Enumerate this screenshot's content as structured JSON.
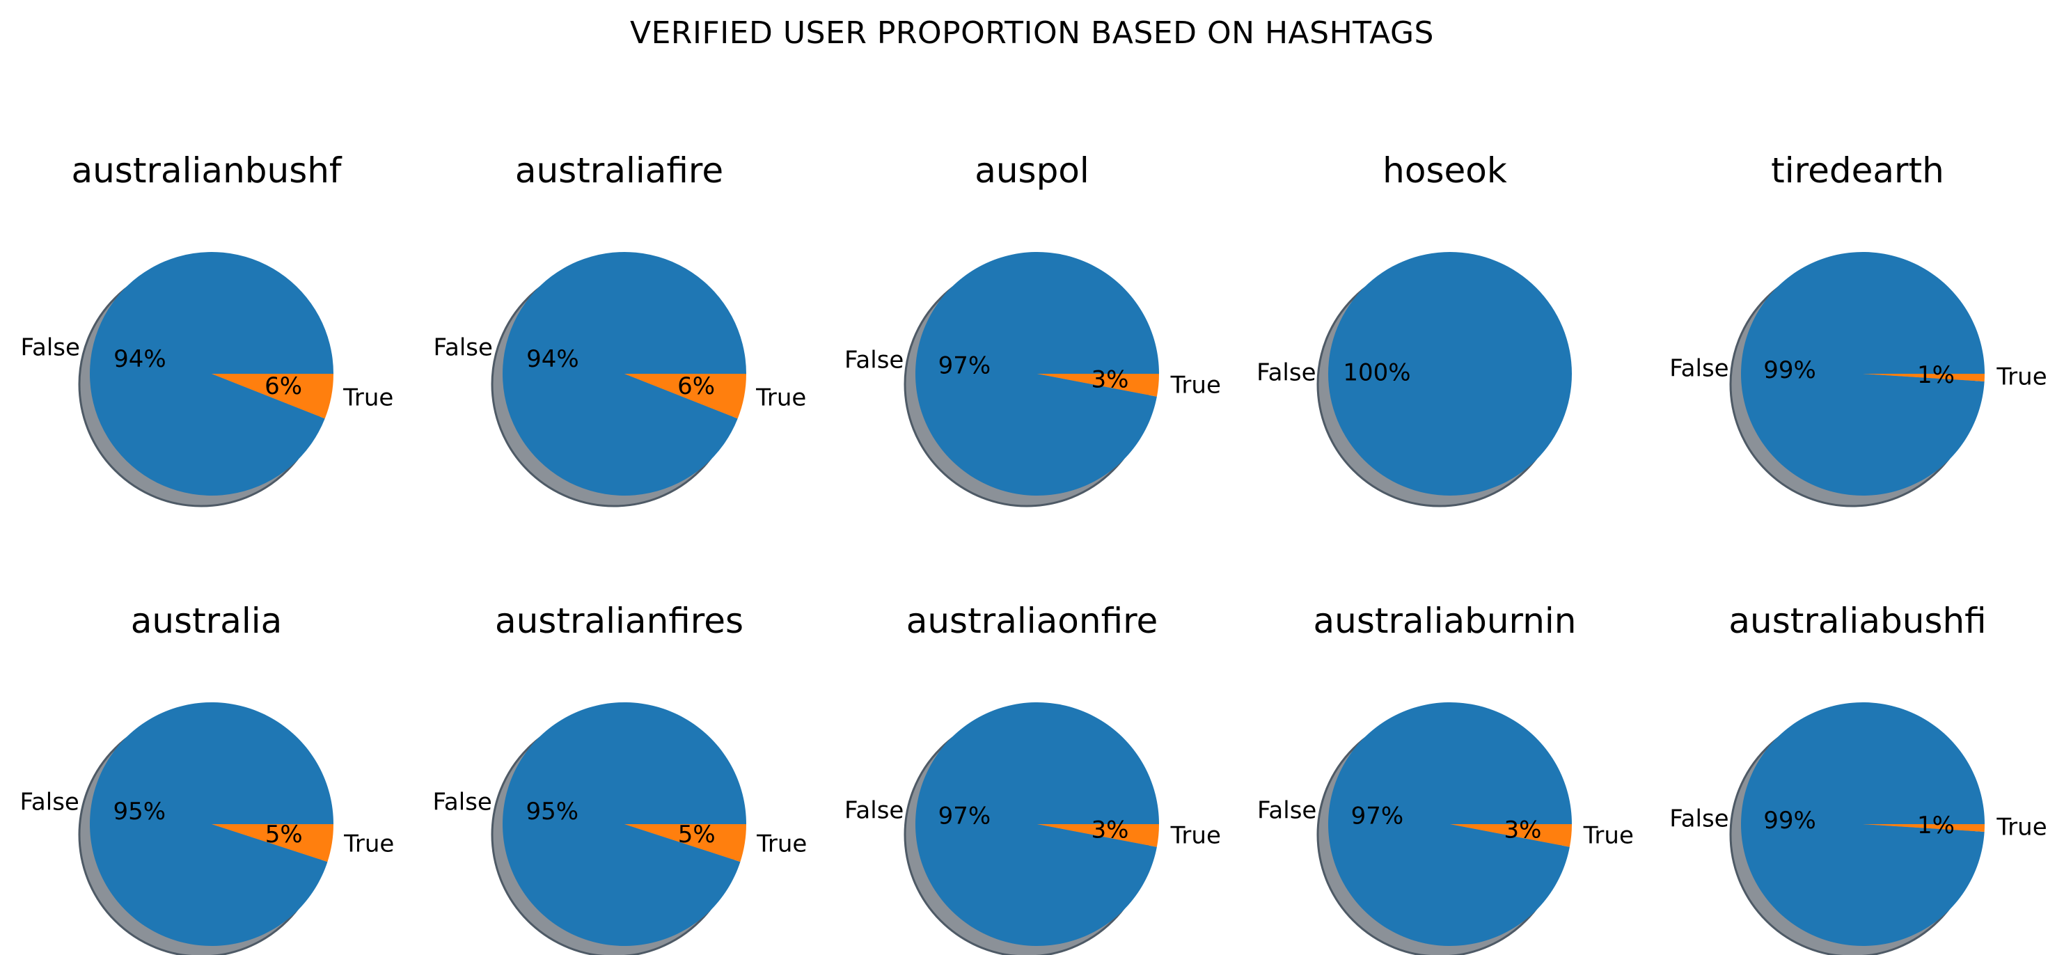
{
  "title": "VERIFIED USER PROPORTION BASED ON HASHTAGS",
  "colors": {
    "false": "#1f77b4",
    "true": "#ff7f0e",
    "shadow": "#8b9198",
    "shadow_edge": "#4e5a66"
  },
  "chart_data": [
    {
      "type": "pie",
      "title": "australianbushf",
      "labels": [
        "False",
        "True"
      ],
      "values": [
        94,
        6
      ],
      "autopct": [
        "94%",
        "6%"
      ]
    },
    {
      "type": "pie",
      "title": "australiafire",
      "labels": [
        "False",
        "True"
      ],
      "values": [
        94,
        6
      ],
      "autopct": [
        "94%",
        "6%"
      ]
    },
    {
      "type": "pie",
      "title": "auspol",
      "labels": [
        "False",
        "True"
      ],
      "values": [
        97,
        3
      ],
      "autopct": [
        "97%",
        "3%"
      ]
    },
    {
      "type": "pie",
      "title": "hoseok",
      "labels": [
        "False"
      ],
      "values": [
        100
      ],
      "autopct": [
        "100%"
      ]
    },
    {
      "type": "pie",
      "title": "tiredearth",
      "labels": [
        "False",
        "True"
      ],
      "values": [
        99,
        1
      ],
      "autopct": [
        "99%",
        "1%"
      ]
    },
    {
      "type": "pie",
      "title": "australia",
      "labels": [
        "False",
        "True"
      ],
      "values": [
        95,
        5
      ],
      "autopct": [
        "95%",
        "5%"
      ]
    },
    {
      "type": "pie",
      "title": "australianfires",
      "labels": [
        "False",
        "True"
      ],
      "values": [
        95,
        5
      ],
      "autopct": [
        "95%",
        "5%"
      ]
    },
    {
      "type": "pie",
      "title": "australiaonfire",
      "labels": [
        "False",
        "True"
      ],
      "values": [
        97,
        3
      ],
      "autopct": [
        "97%",
        "3%"
      ]
    },
    {
      "type": "pie",
      "title": "australiaburnin",
      "labels": [
        "False",
        "True"
      ],
      "values": [
        97,
        3
      ],
      "autopct": [
        "97%",
        "3%"
      ]
    },
    {
      "type": "pie",
      "title": "australiabushfi",
      "labels": [
        "False",
        "True"
      ],
      "values": [
        99,
        1
      ],
      "autopct": [
        "99%",
        "1%"
      ]
    }
  ]
}
